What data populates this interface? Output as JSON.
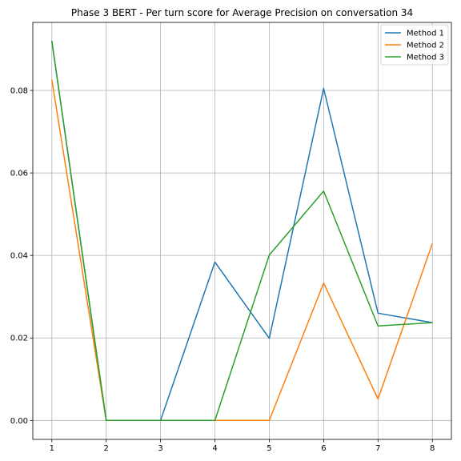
{
  "chart_data": {
    "type": "line",
    "title": "Phase 3 BERT - Per turn score for Average Precision on conversation 34",
    "xlabel": "",
    "ylabel": "",
    "x": [
      1,
      2,
      3,
      4,
      5,
      6,
      7,
      8
    ],
    "xticks": [
      "1",
      "2",
      "3",
      "4",
      "5",
      "6",
      "7",
      "8"
    ],
    "yticks": [
      "0.00",
      "0.02",
      "0.04",
      "0.06",
      "0.08"
    ],
    "xlim": [
      0.65,
      8.35
    ],
    "ylim": [
      -0.0046,
      0.0965
    ],
    "grid": true,
    "legend_position": "top-right",
    "series": [
      {
        "name": "Method 1",
        "color": "#1f77b4",
        "values": [
          0.092,
          0.0,
          0.0,
          0.0384,
          0.0199,
          0.0805,
          0.026,
          0.0237
        ]
      },
      {
        "name": "Method 2",
        "color": "#ff7f0e",
        "values": [
          0.0826,
          0.0,
          0.0,
          0.0,
          0.0,
          0.0333,
          0.0052,
          0.0429
        ]
      },
      {
        "name": "Method 3",
        "color": "#2ca02c",
        "values": [
          0.092,
          0.0,
          0.0,
          0.0,
          0.0401,
          0.0556,
          0.0229,
          0.0237
        ]
      }
    ]
  }
}
